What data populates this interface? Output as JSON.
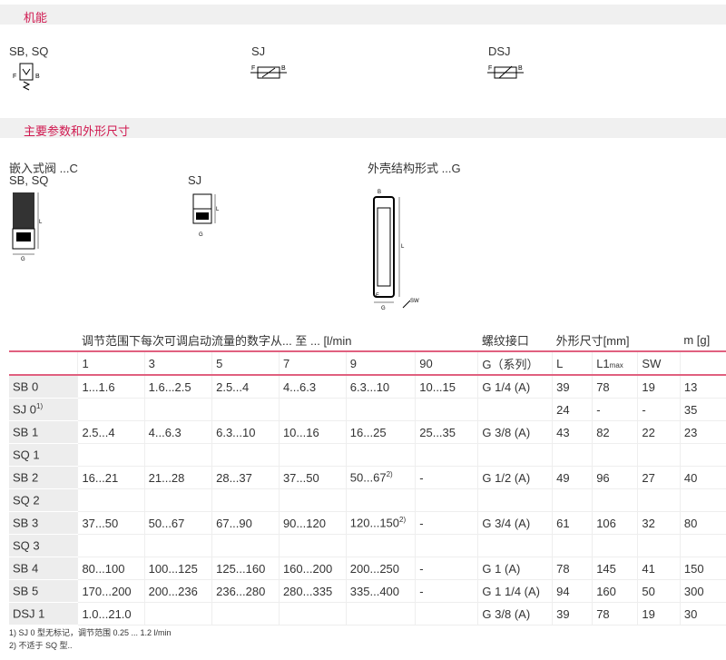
{
  "sections": {
    "function": "机能",
    "params": "主要参数和外形尺寸"
  },
  "function_symbols": [
    {
      "label": "SB, SQ"
    },
    {
      "label": "SJ"
    },
    {
      "label": "DSJ"
    }
  ],
  "symbol_letters": {
    "f": "F",
    "b": "B",
    "g": "G",
    "l": "L",
    "sw": "SW"
  },
  "dimension_labels": {
    "insert": "嵌入式阀 ...C",
    "insert_sub1": "SB, SQ",
    "insert_sub2": "SJ",
    "housing": "外壳结构形式 ...G"
  },
  "table": {
    "header1": [
      "调节范围下每次可调启动流量的数字从... 至 ... [l/min",
      "螺纹接口",
      "外形尺寸[mm]",
      "m [g]"
    ],
    "header2": [
      "1",
      "3",
      "5",
      "7",
      "9",
      "90",
      "G（系列）",
      "L",
      "L1",
      "max",
      "SW"
    ],
    "rows": [
      {
        "label": "SB 0",
        "sup": "",
        "cells": [
          "1...1.6",
          "1.6...2.5",
          "2.5...4",
          "4...6.3",
          "6.3...10",
          "10...15",
          "G 1/4 (A)",
          "39",
          "78",
          "19",
          "13"
        ]
      },
      {
        "label": "SJ 0",
        "sup": "1)",
        "cells": [
          "",
          "",
          "",
          "",
          "",
          "",
          "",
          "24",
          "-",
          "-",
          "35"
        ]
      },
      {
        "label": "SB 1",
        "sup": "",
        "cells": [
          "2.5...4",
          "4...6.3",
          "6.3...10",
          "10...16",
          "16...25",
          "25...35",
          "G 3/8 (A)",
          "43",
          "82",
          "22",
          "23"
        ]
      },
      {
        "label": "SQ 1",
        "sup": "",
        "cells": [
          "",
          "",
          "",
          "",
          "",
          "",
          "",
          "",
          "",
          "",
          ""
        ]
      },
      {
        "label": "SB 2",
        "sup": "",
        "cells": [
          "16...21",
          "21...28",
          "28...37",
          "37...50",
          "50...67",
          "-",
          "G 1/2 (A)",
          "49",
          "96",
          "27",
          "40"
        ],
        "sup5": "2)"
      },
      {
        "label": "SQ 2",
        "sup": "",
        "cells": [
          "",
          "",
          "",
          "",
          "",
          "",
          "",
          "",
          "",
          "",
          ""
        ]
      },
      {
        "label": "SB 3",
        "sup": "",
        "cells": [
          "37...50",
          "50...67",
          "67...90",
          "90...120",
          "120...150",
          "-",
          "G 3/4 (A)",
          "61",
          "106",
          "32",
          "80"
        ],
        "sup5": "2)"
      },
      {
        "label": "SQ 3",
        "sup": "",
        "cells": [
          "",
          "",
          "",
          "",
          "",
          "",
          "",
          "",
          "",
          "",
          ""
        ]
      },
      {
        "label": "SB 4",
        "sup": "",
        "cells": [
          "80...100",
          "100...125",
          "125...160",
          "160...200",
          "200...250",
          "-",
          "G 1 (A)",
          "78",
          "145",
          "41",
          "150"
        ]
      },
      {
        "label": "SB 5",
        "sup": "",
        "cells": [
          "170...200",
          "200...236",
          "236...280",
          "280...335",
          "335...400",
          "-",
          "G 1 1/4 (A)",
          "94",
          "160",
          "50",
          "300"
        ]
      },
      {
        "label": "DSJ 1",
        "sup": "",
        "cells": [
          "1.0...21.0",
          "",
          "",
          "",
          "",
          "",
          "G 3/8 (A)",
          "39",
          "78",
          "19",
          "30"
        ]
      }
    ]
  },
  "footnotes": [
    "1)   SJ 0 型无标记，调节范围 0.25 ... 1.2 l/min",
    "2)   不适于 SQ 型.."
  ],
  "colors": {
    "accent": "#d0184f",
    "rule": "#e0607f",
    "label_bg": "#ededed"
  }
}
